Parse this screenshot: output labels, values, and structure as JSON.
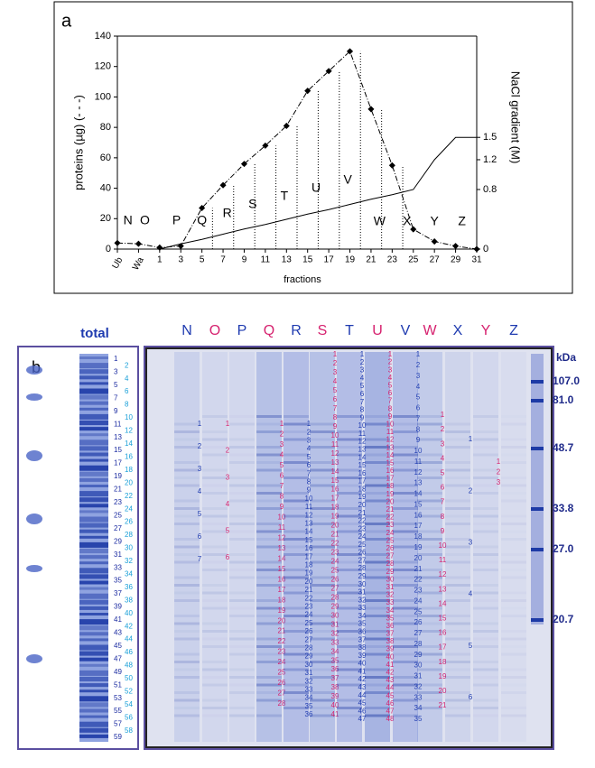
{
  "chart_data": {
    "type": "line",
    "panel": "a",
    "ylabel": "proteins (µg) (- - -)",
    "y2label": "NaCl gradient (M)",
    "xlabel": "fractions",
    "categories": [
      "Ub",
      "Wa",
      "1",
      "3",
      "5",
      "7",
      "9",
      "11",
      "13",
      "15",
      "17",
      "19",
      "21",
      "23",
      "25",
      "27",
      "29",
      "31"
    ],
    "series": [
      {
        "name": "proteins",
        "color": "#000000",
        "values": [
          4,
          3.5,
          1,
          2,
          27,
          42,
          56,
          68,
          81,
          104,
          117,
          130,
          92,
          55,
          13,
          5,
          2,
          0
        ]
      },
      {
        "name": "NaCl gradient",
        "color": "#000000",
        "axis": "y2",
        "values": [
          null,
          null,
          0,
          0.07,
          0.13,
          0.2,
          0.27,
          0.33,
          0.4,
          0.47,
          0.53,
          0.6,
          0.67,
          0.73,
          0.8,
          1.2,
          1.5,
          1.5
        ]
      }
    ],
    "annotations": [
      "N",
      "O",
      "P",
      "Q",
      "R",
      "S",
      "T",
      "U",
      "V",
      "W",
      "X",
      "Y",
      "Z"
    ],
    "ylim": [
      0,
      140
    ],
    "yticks": [
      0,
      20,
      40,
      60,
      80,
      100,
      120,
      140
    ],
    "y2lim": [
      0,
      2.86
    ],
    "y2ticks": [
      0,
      0.8,
      1.2,
      1.5
    ]
  },
  "gel": {
    "panel": "b",
    "total_label": "total",
    "unit": "kDa",
    "markers": [
      {
        "value": 107,
        "label": "107.0"
      },
      {
        "value": 81,
        "label": "81.0"
      },
      {
        "value": 48.7,
        "label": "48.7"
      },
      {
        "value": 33.8,
        "label": "33.8"
      },
      {
        "value": 27,
        "label": "27.0"
      },
      {
        "value": 20.7,
        "label": "20.7"
      }
    ],
    "total_bands": [
      1,
      2,
      3,
      4,
      5,
      6,
      7,
      8,
      9,
      10,
      11,
      12,
      13,
      14,
      15,
      16,
      17,
      18,
      19,
      20,
      21,
      22,
      23,
      24,
      25,
      26,
      27,
      28,
      29,
      30,
      31,
      32,
      33,
      34,
      35,
      36,
      37,
      38,
      39,
      40,
      41,
      42,
      43,
      44,
      45,
      46,
      47,
      48,
      49,
      50,
      51,
      52,
      53,
      54,
      55,
      56,
      57,
      58,
      59
    ],
    "lanes": [
      {
        "name": "N",
        "bands": [
          1,
          2,
          3,
          4,
          5,
          6,
          7
        ]
      },
      {
        "name": "O",
        "bands": [
          1,
          2,
          3,
          4,
          5,
          6
        ]
      },
      {
        "name": "P",
        "bands": []
      },
      {
        "name": "Q",
        "bands": [
          1,
          2,
          3,
          4,
          5,
          6,
          7,
          8,
          9,
          10,
          11,
          12,
          13,
          14,
          15,
          16,
          17,
          18,
          19,
          20,
          21,
          22,
          23,
          24,
          25,
          26,
          27,
          28
        ]
      },
      {
        "name": "R",
        "bands": [
          1,
          2,
          3,
          4,
          5,
          6,
          7,
          8,
          9,
          10,
          11,
          12,
          13,
          14,
          15,
          16,
          17,
          18,
          19,
          20,
          21,
          22,
          23,
          24,
          25,
          26,
          27,
          28,
          29,
          30,
          31,
          32,
          33,
          34,
          35,
          36
        ]
      },
      {
        "name": "S",
        "bands": [
          1,
          2,
          3,
          4,
          5,
          6,
          7,
          8,
          9,
          10,
          11,
          12,
          13,
          14,
          15,
          16,
          17,
          18,
          19,
          20,
          21,
          22,
          23,
          24,
          25,
          26,
          27,
          28,
          29,
          30,
          31,
          32,
          33,
          34,
          35,
          36,
          37,
          38,
          39,
          40,
          41
        ]
      },
      {
        "name": "T",
        "bands": [
          1,
          2,
          3,
          4,
          5,
          6,
          7,
          8,
          9,
          10,
          11,
          12,
          13,
          14,
          15,
          16,
          17,
          18,
          19,
          20,
          21,
          22,
          23,
          24,
          25,
          26,
          27,
          28,
          29,
          30,
          31,
          32,
          33,
          34,
          35,
          36,
          37,
          38,
          39,
          40,
          41,
          42,
          43,
          44,
          45,
          46,
          47
        ]
      },
      {
        "name": "U",
        "bands": [
          1,
          2,
          3,
          4,
          5,
          6,
          7,
          8,
          9,
          10,
          11,
          12,
          13,
          14,
          15,
          16,
          17,
          18,
          19,
          20,
          21,
          22,
          23,
          24,
          25,
          26,
          27,
          28,
          29,
          30,
          31,
          32,
          33,
          34,
          35,
          36,
          37,
          38,
          39,
          40,
          41,
          42,
          43,
          44,
          45,
          46,
          47,
          48
        ]
      },
      {
        "name": "V",
        "bands": [
          1,
          2,
          3,
          4,
          5,
          6,
          7,
          8,
          9,
          10,
          11,
          12,
          13,
          14,
          15,
          16,
          17,
          18,
          19,
          20,
          21,
          22,
          23,
          24,
          25,
          26,
          27,
          28,
          29,
          30,
          31,
          32,
          33,
          34,
          35
        ]
      },
      {
        "name": "W",
        "bands": [
          1,
          2,
          3,
          4,
          5,
          6,
          7,
          8,
          9,
          10,
          11,
          12,
          13,
          14,
          15,
          16,
          17,
          18,
          19,
          20,
          21
        ]
      },
      {
        "name": "X",
        "bands": [
          1,
          2,
          3,
          4,
          5,
          6
        ]
      },
      {
        "name": "Y",
        "bands": [
          1,
          2,
          3
        ]
      },
      {
        "name": "Z",
        "bands": []
      }
    ]
  }
}
